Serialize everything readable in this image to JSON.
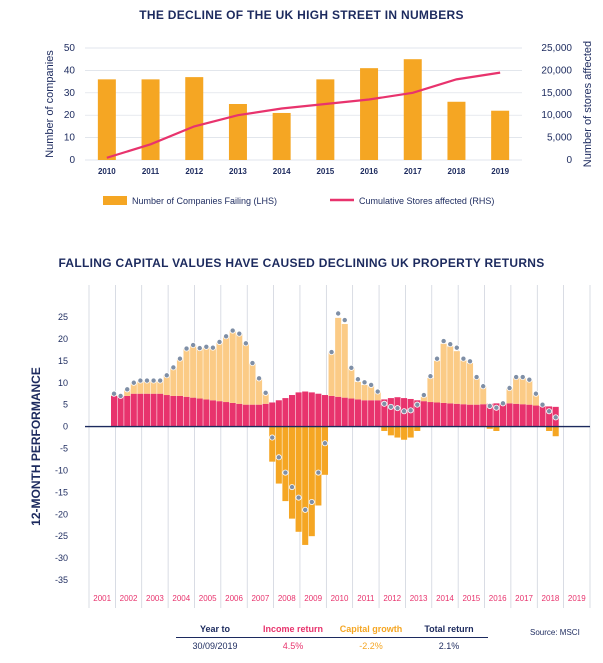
{
  "colors": {
    "navy": "#1c2a5e",
    "orange": "#f5a623",
    "light_orange": "#fbcb86",
    "pink": "#e8336d",
    "grey_dot": "#7f8fa6"
  },
  "chart_data": [
    {
      "type": "bar",
      "title": "THE DECLINE OF THE UK HIGH STREET IN NUMBERS",
      "categories": [
        "2010",
        "2011",
        "2012",
        "2013",
        "2014",
        "2015",
        "2016",
        "2017",
        "2018",
        "2019"
      ],
      "series": [
        {
          "name": "Number of Companies Failing (LHS)",
          "type": "bar",
          "axis": "left",
          "values": [
            36,
            36,
            37,
            25,
            21,
            36,
            41,
            45,
            26,
            22
          ]
        },
        {
          "name": "Cumulative Stores affected (RHS)",
          "type": "line",
          "axis": "right",
          "values": [
            500,
            3500,
            7500,
            10000,
            11500,
            12500,
            13500,
            15000,
            18000,
            19500
          ]
        }
      ],
      "ylabel": "Number of companies",
      "y2label": "Number of stores affected",
      "ylim": [
        0,
        50
      ],
      "yticks": [
        "0",
        "10",
        "20",
        "30",
        "40",
        "50"
      ],
      "y2lim": [
        0,
        25000
      ],
      "y2ticks": [
        "0",
        "5,000",
        "10,000",
        "15,000",
        "20,000",
        "25,000"
      ],
      "legend_position": "bottom"
    },
    {
      "type": "bar",
      "title": "FALLING CAPITAL VALUES HAVE CAUSED DECLINING UK PROPERTY RETURNS",
      "ylabel": "12-MONTH PERFORMANCE",
      "ylim": [
        -37,
        27
      ],
      "yticks": [
        "25",
        "20",
        "15",
        "10",
        "5",
        "0",
        "-5",
        "-10",
        "-15",
        "-20",
        "-25",
        "-30",
        "-35"
      ],
      "year_labels": [
        "2001",
        "2002",
        "2003",
        "2004",
        "2005",
        "2006",
        "2007",
        "2008",
        "2009",
        "2010",
        "2011",
        "2012",
        "2013",
        "2014",
        "2015",
        "2016",
        "2017",
        "2018",
        "2019"
      ],
      "quarters_per_year": 4,
      "series": [
        {
          "name": "Income return",
          "values": [
            7,
            7,
            7,
            7.5,
            7.5,
            7.5,
            7.5,
            7.5,
            7.2,
            7,
            7,
            6.8,
            6.6,
            6.4,
            6.2,
            6,
            5.8,
            5.6,
            5.4,
            5.2,
            5,
            5,
            5,
            5.2,
            5.5,
            6,
            6.5,
            7.2,
            7.8,
            8,
            7.8,
            7.5,
            7.2,
            7,
            6.8,
            6.6,
            6.4,
            6.2,
            6,
            6,
            6,
            6.2,
            6.5,
            6.7,
            6.5,
            6.3,
            6,
            5.8,
            5.6,
            5.5,
            5.4,
            5.3,
            5.2,
            5.1,
            5,
            5,
            5.1,
            5.2,
            5.3,
            5.3,
            5.3,
            5.2,
            5.1,
            5,
            4.8,
            4.7,
            4.6,
            4.5
          ]
        },
        {
          "name": "Capital growth",
          "values": [
            0.5,
            0,
            1.5,
            2.5,
            3,
            3,
            3,
            3,
            4.5,
            6.5,
            8.5,
            11,
            12,
            11.5,
            12,
            12,
            13.5,
            15,
            16.5,
            16,
            14,
            9.5,
            6,
            2.5,
            -8,
            -13,
            -17,
            -21,
            -24,
            -27,
            -25,
            -18,
            -11,
            10,
            18,
            16.8,
            7,
            4,
            3.5,
            3.3,
            2,
            -1,
            -2,
            -2.5,
            -3,
            -2.5,
            -1,
            1,
            5.5,
            9.5,
            13.5,
            13,
            12,
            10,
            9.5,
            6,
            4,
            -0.5,
            -1,
            0,
            3.5,
            6,
            6,
            5.5,
            2.5,
            0,
            -1,
            -2.2
          ]
        },
        {
          "name": "Total return",
          "values": [
            7.5,
            7,
            8.5,
            10,
            10.5,
            10.5,
            10.5,
            10.5,
            11.7,
            13.5,
            15.5,
            17.8,
            18.6,
            17.9,
            18.2,
            18,
            19.3,
            20.6,
            21.9,
            21.2,
            19,
            14.5,
            11,
            7.7,
            -2.5,
            -7,
            -10.5,
            -13.8,
            -16.2,
            -19,
            -17.2,
            -10.5,
            -3.8,
            17,
            25.8,
            24.3,
            13.4,
            10.8,
            10.1,
            9.5,
            8,
            5.2,
            4.5,
            4.2,
            3.5,
            3.7,
            5,
            7.2,
            11.5,
            15.5,
            19.5,
            18.8,
            18,
            15.5,
            14.9,
            11.3,
            9.2,
            4.7,
            4.3,
            5.3,
            8.8,
            11.3,
            11.3,
            10.7,
            7.5,
            5,
            3.5,
            2.1
          ]
        }
      ]
    }
  ],
  "table": {
    "headers": [
      "Year to",
      "Income return",
      "Capital growth",
      "Total return"
    ],
    "values": [
      "30/09/2019",
      "4.5%",
      "-2.2%",
      "2.1%"
    ]
  },
  "source": "Source: MSCI"
}
